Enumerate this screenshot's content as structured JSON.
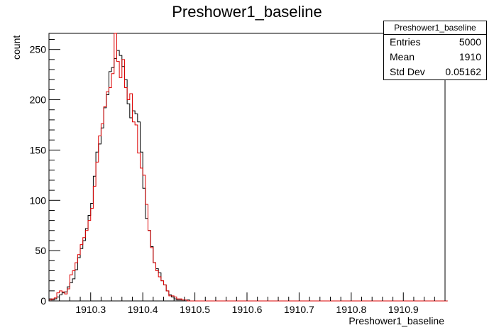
{
  "title": "Preshower1_baseline",
  "stats": {
    "name": "Preshower1_baseline",
    "rows": [
      {
        "label": "Entries",
        "value": "5000"
      },
      {
        "label": "Mean",
        "value": "1910"
      },
      {
        "label": "Std Dev",
        "value": "0.05162"
      }
    ]
  },
  "chart_data": {
    "type": "histogram",
    "title": "Preshower1_baseline",
    "xlabel": "Preshower1_baseline",
    "ylabel": "count",
    "xlim": [
      1910.22,
      1910.98
    ],
    "ylim": [
      0,
      266
    ],
    "x_tick_labels": [
      "1910.3",
      "1910.4",
      "1910.5",
      "1910.6",
      "1910.7",
      "1910.8",
      "1910.9"
    ],
    "x_ticks": [
      1910.3,
      1910.4,
      1910.5,
      1910.6,
      1910.7,
      1910.8,
      1910.9
    ],
    "y_tick_labels": [
      "0",
      "50",
      "100",
      "150",
      "200",
      "250"
    ],
    "y_ticks": [
      0,
      50,
      100,
      150,
      200,
      250
    ],
    "grid": false,
    "bin_width": 0.005,
    "series": [
      {
        "color": "#000000",
        "x_start": 1910.22,
        "values": [
          2,
          1,
          2,
          4,
          6,
          8,
          9,
          14,
          18,
          22,
          31,
          43,
          52,
          60,
          72,
          85,
          97,
          124,
          148,
          156,
          172,
          192,
          205,
          228,
          232,
          241,
          249,
          244,
          233,
          220,
          196,
          182,
          189,
          186,
          178,
          148,
          112,
          82,
          70,
          54,
          38,
          32,
          28,
          20,
          16,
          10,
          6,
          4,
          2,
          1,
          1,
          1,
          0,
          1,
          0,
          0,
          0,
          0,
          0,
          0,
          0,
          0,
          0,
          0,
          0,
          0,
          0,
          0,
          0,
          0,
          0,
          0,
          0,
          0,
          0,
          0,
          0,
          0,
          0,
          0,
          0,
          0,
          0,
          0,
          0,
          0,
          0,
          0,
          0,
          0,
          0,
          0,
          0,
          0,
          0,
          0,
          0,
          0,
          0,
          0,
          0,
          0,
          0,
          0,
          0,
          0,
          0,
          0,
          0,
          0,
          0,
          0,
          0,
          0,
          0,
          0,
          0,
          0,
          0,
          0,
          0,
          0,
          0,
          0,
          0,
          0,
          0,
          0,
          0,
          0,
          0,
          0,
          0,
          0,
          0,
          0,
          0,
          0,
          0,
          0,
          0,
          0,
          0,
          0,
          0,
          0,
          0,
          0,
          0,
          0,
          0,
          0,
          0
        ]
      },
      {
        "color": "#dd0000",
        "x_start": 1910.22,
        "values": [
          1,
          2,
          3,
          8,
          10,
          9,
          7,
          12,
          26,
          30,
          38,
          46,
          56,
          63,
          70,
          80,
          92,
          114,
          138,
          164,
          176,
          193,
          208,
          212,
          226,
          272,
          238,
          222,
          240,
          212,
          200,
          206,
          178,
          175,
          147,
          132,
          125,
          96,
          70,
          53,
          38,
          30,
          24,
          20,
          16,
          10,
          5,
          5,
          4,
          2,
          2,
          1,
          1,
          0,
          0,
          0,
          0,
          0,
          0,
          0,
          0,
          0,
          0,
          0,
          0,
          0,
          0,
          0,
          0,
          0,
          0,
          0,
          0,
          0,
          0,
          0,
          0,
          0,
          0,
          0,
          0,
          0,
          0,
          0,
          0,
          0,
          0,
          0,
          0,
          0,
          0,
          0,
          0,
          0,
          0,
          0,
          0,
          0,
          0,
          0,
          0,
          0,
          0,
          0,
          0,
          0,
          0,
          0,
          0,
          0,
          0,
          0,
          0,
          0,
          0,
          0,
          0,
          0,
          0,
          0,
          0,
          0,
          0,
          0,
          0,
          0,
          0,
          0,
          0,
          0,
          0,
          0,
          0,
          0,
          0,
          0,
          0,
          0,
          0,
          0,
          0,
          0,
          0,
          0,
          0,
          0,
          0,
          0,
          0,
          0,
          0,
          0,
          0
        ]
      }
    ]
  }
}
